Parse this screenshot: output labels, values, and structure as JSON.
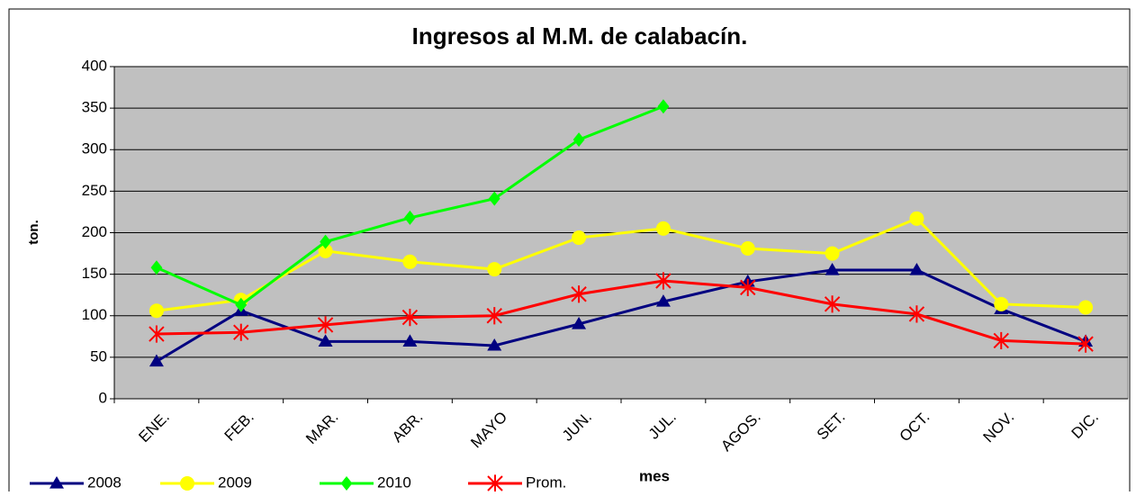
{
  "chart_data": {
    "type": "line",
    "title": "Ingresos al M.M. de calabacín.",
    "y_label": "ton.",
    "x_label": "mes",
    "categories": [
      "ENE.",
      "FEB.",
      "MAR.",
      "ABR.",
      "MAYO",
      "JUN.",
      "JUL.",
      "AGOS.",
      "SET.",
      "OCT.",
      "NOV.",
      "DIC."
    ],
    "series": [
      {
        "name": "2008",
        "color": "#000080",
        "marker": "triangle",
        "values": [
          45,
          106,
          69,
          69,
          64,
          90,
          117,
          141,
          155,
          155,
          108,
          69
        ]
      },
      {
        "name": "2009",
        "color": "#ffff00",
        "marker": "circle",
        "values": [
          106,
          119,
          178,
          165,
          156,
          194,
          205,
          181,
          175,
          217,
          114,
          110
        ]
      },
      {
        "name": "2010",
        "color": "#00ff00",
        "marker": "diamond",
        "values": [
          158,
          113,
          189,
          218,
          241,
          312,
          352,
          null,
          null,
          null,
          null,
          null
        ]
      },
      {
        "name": "Prom.",
        "color": "#ff0000",
        "marker": "asterisk",
        "values": [
          78,
          80,
          89,
          98,
          100,
          126,
          142,
          134,
          114,
          102,
          70,
          66
        ]
      }
    ],
    "ylim": [
      0,
      400
    ],
    "yticks": [
      0,
      50,
      100,
      150,
      200,
      250,
      300,
      350,
      400
    ],
    "grid": true,
    "plot_background": "#c0c0c0",
    "legend": "bottom"
  }
}
